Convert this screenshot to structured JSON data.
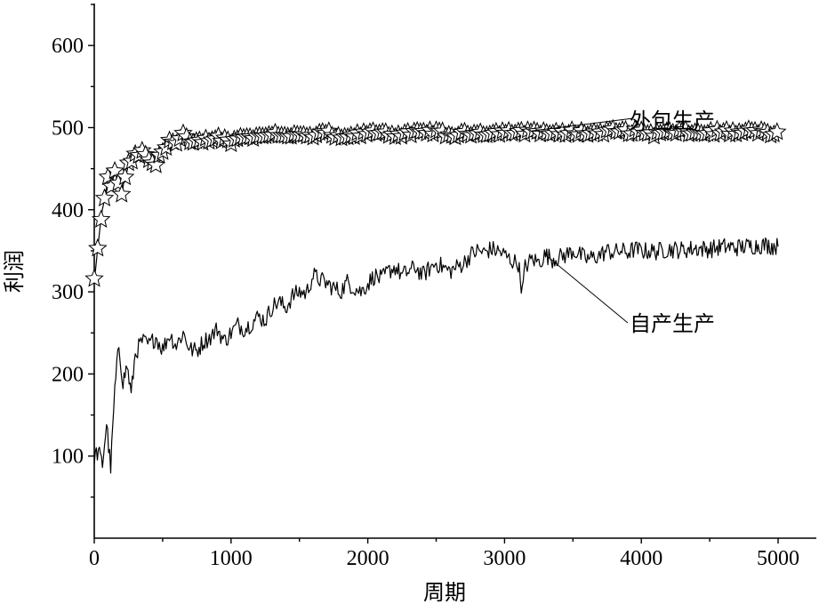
{
  "chart_data": {
    "type": "line",
    "xlabel": "周期",
    "ylabel": "利润",
    "xlim": [
      0,
      5000
    ],
    "ylim": [
      0,
      650
    ],
    "x_ticks": [
      0,
      1000,
      2000,
      3000,
      4000,
      5000
    ],
    "y_ticks": [
      100,
      200,
      300,
      400,
      500,
      600
    ],
    "grid": false,
    "series": [
      {
        "name": "外包生产",
        "marker": "star",
        "points": [
          [
            0,
            315
          ],
          [
            25,
            350
          ],
          [
            50,
            390
          ],
          [
            75,
            412
          ],
          [
            100,
            438
          ],
          [
            125,
            430
          ],
          [
            150,
            445
          ],
          [
            200,
            420
          ],
          [
            250,
            455
          ],
          [
            300,
            465
          ],
          [
            350,
            470
          ],
          [
            400,
            460
          ],
          [
            450,
            455
          ],
          [
            500,
            472
          ],
          [
            550,
            485
          ],
          [
            600,
            480
          ],
          [
            650,
            492
          ],
          [
            700,
            480
          ],
          [
            800,
            484
          ],
          [
            900,
            488
          ],
          [
            1000,
            483
          ],
          [
            1100,
            490
          ],
          [
            1200,
            488
          ],
          [
            1300,
            493
          ],
          [
            1400,
            491
          ],
          [
            1500,
            490
          ],
          [
            1600,
            489
          ],
          [
            1700,
            494
          ],
          [
            1800,
            486
          ],
          [
            1900,
            490
          ],
          [
            2000,
            493
          ],
          [
            2100,
            495
          ],
          [
            2200,
            491
          ],
          [
            2300,
            492
          ],
          [
            2400,
            494
          ],
          [
            2500,
            495
          ],
          [
            2600,
            490
          ],
          [
            2700,
            492
          ],
          [
            2800,
            494
          ],
          [
            2900,
            493
          ],
          [
            3000,
            495
          ],
          [
            3100,
            493
          ],
          [
            3200,
            496
          ],
          [
            3300,
            494
          ],
          [
            3400,
            492
          ],
          [
            3500,
            495
          ],
          [
            3600,
            493
          ],
          [
            3700,
            494
          ],
          [
            3800,
            496
          ],
          [
            3900,
            495
          ],
          [
            4000,
            495
          ],
          [
            4100,
            492
          ],
          [
            4200,
            494
          ],
          [
            4300,
            495
          ],
          [
            4400,
            493
          ],
          [
            4500,
            494
          ],
          [
            4600,
            495
          ],
          [
            4700,
            493
          ],
          [
            4800,
            496
          ],
          [
            4900,
            494
          ],
          [
            5000,
            492
          ]
        ]
      },
      {
        "name": "自产生产",
        "marker": "none",
        "points": [
          [
            0,
            100
          ],
          [
            30,
            105
          ],
          [
            60,
            90
          ],
          [
            90,
            140
          ],
          [
            120,
            85
          ],
          [
            150,
            180
          ],
          [
            180,
            235
          ],
          [
            210,
            190
          ],
          [
            240,
            210
          ],
          [
            270,
            175
          ],
          [
            300,
            225
          ],
          [
            350,
            240
          ],
          [
            400,
            235
          ],
          [
            450,
            245
          ],
          [
            500,
            230
          ],
          [
            550,
            248
          ],
          [
            600,
            235
          ],
          [
            650,
            250
          ],
          [
            700,
            230
          ],
          [
            750,
            228
          ],
          [
            800,
            240
          ],
          [
            850,
            245
          ],
          [
            900,
            255
          ],
          [
            950,
            240
          ],
          [
            1000,
            250
          ],
          [
            1050,
            260
          ],
          [
            1100,
            255
          ],
          [
            1150,
            262
          ],
          [
            1200,
            270
          ],
          [
            1250,
            265
          ],
          [
            1300,
            282
          ],
          [
            1350,
            288
          ],
          [
            1400,
            280
          ],
          [
            1450,
            295
          ],
          [
            1500,
            300
          ],
          [
            1550,
            298
          ],
          [
            1600,
            320
          ],
          [
            1650,
            315
          ],
          [
            1700,
            310
          ],
          [
            1750,
            305
          ],
          [
            1800,
            300
          ],
          [
            1850,
            312
          ],
          [
            1900,
            305
          ],
          [
            1950,
            300
          ],
          [
            2000,
            310
          ],
          [
            2050,
            320
          ],
          [
            2100,
            315
          ],
          [
            2150,
            325
          ],
          [
            2200,
            330
          ],
          [
            2250,
            320
          ],
          [
            2300,
            325
          ],
          [
            2350,
            330
          ],
          [
            2400,
            320
          ],
          [
            2450,
            328
          ],
          [
            2500,
            335
          ],
          [
            2550,
            330
          ],
          [
            2600,
            325
          ],
          [
            2650,
            330
          ],
          [
            2700,
            335
          ],
          [
            2750,
            345
          ],
          [
            2800,
            350
          ],
          [
            2850,
            348
          ],
          [
            2900,
            352
          ],
          [
            2950,
            350
          ],
          [
            3000,
            345
          ],
          [
            3050,
            338
          ],
          [
            3100,
            335
          ],
          [
            3130,
            300
          ],
          [
            3150,
            330
          ],
          [
            3200,
            340
          ],
          [
            3250,
            336
          ],
          [
            3300,
            345
          ],
          [
            3350,
            340
          ],
          [
            3400,
            342
          ],
          [
            3450,
            345
          ],
          [
            3500,
            350
          ],
          [
            3550,
            345
          ],
          [
            3600,
            340
          ],
          [
            3650,
            342
          ],
          [
            3700,
            345
          ],
          [
            3750,
            350
          ],
          [
            3800,
            348
          ],
          [
            3850,
            350
          ],
          [
            3900,
            348
          ],
          [
            3950,
            352
          ],
          [
            4000,
            350
          ],
          [
            4100,
            349
          ],
          [
            4200,
            352
          ],
          [
            4300,
            351
          ],
          [
            4400,
            353
          ],
          [
            4500,
            352
          ],
          [
            4600,
            355
          ],
          [
            4700,
            354
          ],
          [
            4800,
            356
          ],
          [
            4900,
            357
          ],
          [
            5000,
            355
          ]
        ]
      }
    ],
    "annotations": [
      {
        "text": "外包生产",
        "series": "外包生产",
        "target": [
          3200,
          496
        ]
      },
      {
        "text": "自产生产",
        "series": "自产生产",
        "target": [
          3300,
          345
        ]
      }
    ]
  }
}
